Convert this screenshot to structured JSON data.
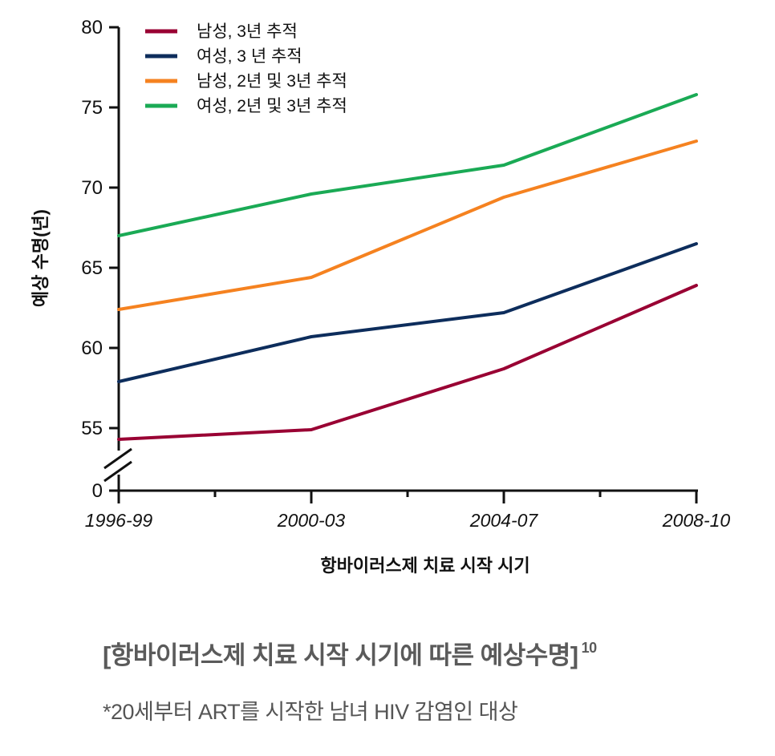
{
  "chart_data": {
    "type": "line",
    "title": "",
    "xlabel": "항바이러스제 치료 시작 시기",
    "ylabel": "예상 수명(년)",
    "categories": [
      "1996-99",
      "2000-03",
      "2004-07",
      "2008-10"
    ],
    "ylim": [
      55,
      80
    ],
    "y_ticks": [
      "80",
      "75",
      "70",
      "65",
      "60",
      "55"
    ],
    "y_zero_label": "0",
    "axis_break": true,
    "legend_position": "top-left",
    "series": [
      {
        "name": "남성, 3년 추적",
        "color": "#990033",
        "values": [
          54.3,
          54.9,
          58.7,
          63.9
        ]
      },
      {
        "name": "여성, 3 년 추적",
        "color": "#0d2d5c",
        "values": [
          57.9,
          60.7,
          62.2,
          66.5
        ]
      },
      {
        "name": "남성, 2년 및 3년 추적",
        "color": "#f58220",
        "values": [
          62.4,
          64.4,
          69.4,
          72.9
        ]
      },
      {
        "name": "여성, 2년 및 3년 추적",
        "color": "#1aaa55",
        "values": [
          67.0,
          69.6,
          71.4,
          75.8
        ]
      }
    ]
  },
  "caption": {
    "title": "[항바이러스제 치료 시작 시기에 따른 예상수명]",
    "footnote_ref": "10",
    "note": "*20세부터 ART를 시작한 남녀 HIV 감염인 대상"
  }
}
